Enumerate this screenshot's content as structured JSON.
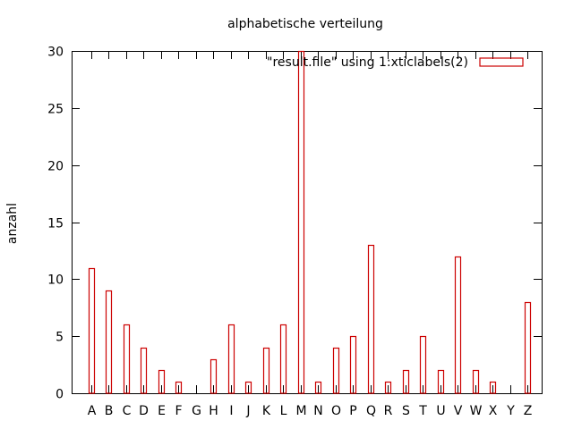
{
  "chart_data": {
    "type": "bar",
    "title": "alphabetische verteilung",
    "xlabel": "",
    "ylabel": "anzahl",
    "ylim": [
      0,
      30
    ],
    "yticks": [
      0,
      5,
      10,
      15,
      20,
      25,
      30
    ],
    "grid": false,
    "legend_position": "top-right",
    "categories": [
      "A",
      "B",
      "C",
      "D",
      "E",
      "F",
      "G",
      "H",
      "I",
      "J",
      "K",
      "L",
      "M",
      "N",
      "O",
      "P",
      "Q",
      "R",
      "S",
      "T",
      "U",
      "V",
      "W",
      "X",
      "Y",
      "Z"
    ],
    "series": [
      {
        "name": "\"result.file\" using 1:xticlabels(2)",
        "color": "#cc0000",
        "values": [
          11,
          9,
          6,
          4,
          2,
          1,
          0,
          3,
          6,
          1,
          4,
          6,
          30,
          1,
          4,
          5,
          13,
          1,
          2,
          5,
          2,
          12,
          2,
          1,
          0,
          8
        ]
      }
    ]
  }
}
